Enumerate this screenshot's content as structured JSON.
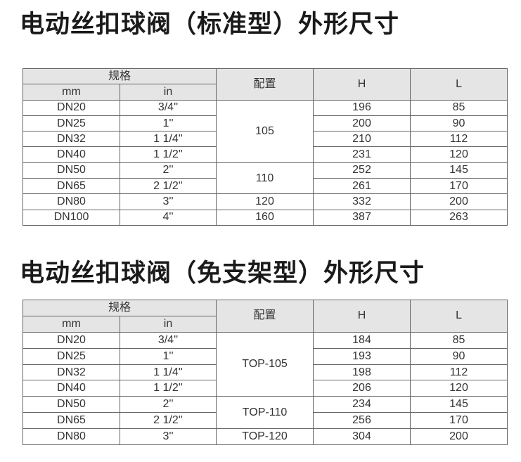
{
  "tables": [
    {
      "title": "电动丝扣球阀（标准型）外形尺寸",
      "header": {
        "spec": "规格",
        "mm": "mm",
        "in": "in",
        "config": "配置",
        "h": "H",
        "l": "L"
      },
      "rows": [
        {
          "mm": "DN20",
          "in": "3/4''",
          "h": "196",
          "l": "85"
        },
        {
          "mm": "DN25",
          "in": "1''",
          "h": "200",
          "l": "90"
        },
        {
          "mm": "DN32",
          "in": "1 1/4''",
          "h": "210",
          "l": "112"
        },
        {
          "mm": "DN40",
          "in": "1 1/2''",
          "h": "231",
          "l": "120"
        },
        {
          "mm": "DN50",
          "in": "2''",
          "h": "252",
          "l": "145"
        },
        {
          "mm": "DN65",
          "in": "2 1/2''",
          "h": "261",
          "l": "170"
        },
        {
          "mm": "DN80",
          "in": "3''",
          "h": "332",
          "l": "200"
        },
        {
          "mm": "DN100",
          "in": "4''",
          "h": "387",
          "l": "263"
        }
      ],
      "config_groups": [
        {
          "label": "105",
          "rows": 4
        },
        {
          "label": "110",
          "rows": 2
        },
        {
          "label": "120",
          "rows": 1
        },
        {
          "label": "160",
          "rows": 1
        }
      ]
    },
    {
      "title": "电动丝扣球阀（免支架型）外形尺寸",
      "header": {
        "spec": "规格",
        "mm": "mm",
        "in": "in",
        "config": "配置",
        "h": "H",
        "l": "L"
      },
      "rows": [
        {
          "mm": "DN20",
          "in": "3/4''",
          "h": "184",
          "l": "85"
        },
        {
          "mm": "DN25",
          "in": "1''",
          "h": "193",
          "l": "90"
        },
        {
          "mm": "DN32",
          "in": "1 1/4''",
          "h": "198",
          "l": "112"
        },
        {
          "mm": "DN40",
          "in": "1 1/2''",
          "h": "206",
          "l": "120"
        },
        {
          "mm": "DN50",
          "in": "2''",
          "h": "234",
          "l": "145"
        },
        {
          "mm": "DN65",
          "in": "2 1/2''",
          "h": "256",
          "l": "170"
        },
        {
          "mm": "DN80",
          "in": "3''",
          "h": "304",
          "l": "200"
        }
      ],
      "config_groups": [
        {
          "label": "TOP-105",
          "rows": 4
        },
        {
          "label": "TOP-110",
          "rows": 2
        },
        {
          "label": "TOP-120",
          "rows": 1
        }
      ]
    }
  ]
}
